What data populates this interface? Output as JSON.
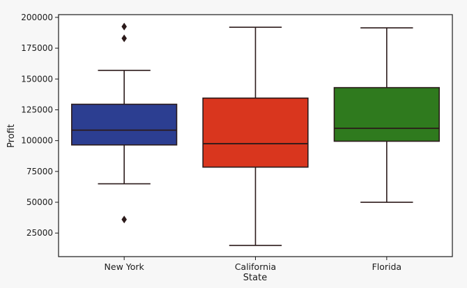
{
  "chart_data": {
    "type": "boxplot",
    "xlabel": "State",
    "ylabel": "Profit",
    "ylim": [
      0,
      200000
    ],
    "yticks": [
      25000,
      50000,
      75000,
      100000,
      125000,
      150000,
      175000,
      200000
    ],
    "grid": false,
    "categories": [
      "New York",
      "California",
      "Florida"
    ],
    "boxes": [
      {
        "category": "New York",
        "color": "#2c3e91",
        "whisker_low": 65000,
        "q1": 96500,
        "median": 108500,
        "q3": 129500,
        "whisker_high": 157000,
        "outliers": [
          36000,
          183000,
          192500
        ]
      },
      {
        "category": "California",
        "color": "#d9361e",
        "whisker_low": 15000,
        "q1": 78500,
        "median": 97500,
        "q3": 134500,
        "whisker_high": 192000,
        "outliers": []
      },
      {
        "category": "Florida",
        "color": "#2f7a1e",
        "whisker_low": 50000,
        "q1": 99500,
        "median": 110000,
        "q3": 143000,
        "whisker_high": 191500,
        "outliers": []
      }
    ]
  }
}
